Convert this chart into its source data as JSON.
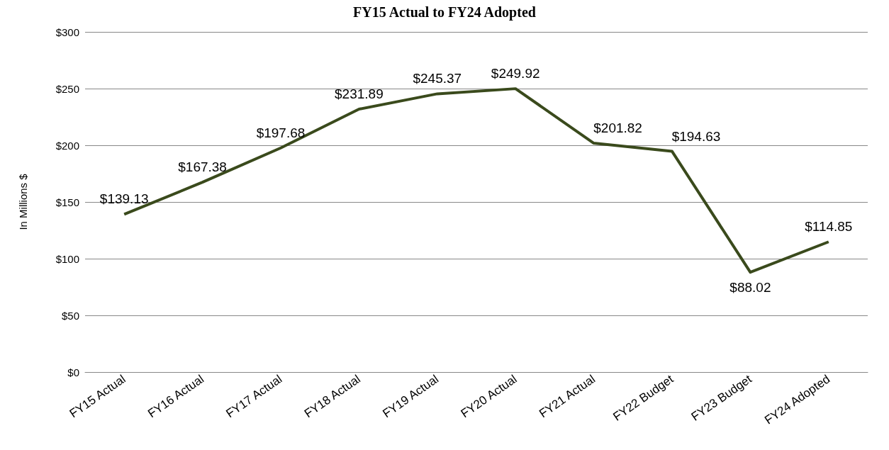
{
  "chart_data": {
    "type": "line",
    "title": "FY15 Actual to FY24 Adopted",
    "ylabel": "In Millions $",
    "categories": [
      "FY15 Actual",
      "FY16 Actual",
      "FY17 Actual",
      "FY18 Actual",
      "FY19 Actual",
      "FY20 Actual",
      "FY21 Actual",
      "FY22 Budget",
      "FY23 Budget",
      "FY24 Adopted"
    ],
    "series": [
      {
        "color": "#3a4a1c",
        "values": [
          139.13,
          167.38,
          197.68,
          231.89,
          245.37,
          249.92,
          201.82,
          194.63,
          88.02,
          114.85
        ],
        "value_labels": [
          "$139.13",
          "$167.38",
          "$197.68",
          "$231.89",
          "$245.37",
          "$249.92",
          "$201.82",
          "$194.63",
          "$88.02",
          "$114.85"
        ]
      }
    ],
    "ylim": [
      0,
      300
    ],
    "yticks": [
      {
        "value": 0,
        "label": "$0"
      },
      {
        "value": 50,
        "label": "$50"
      },
      {
        "value": 100,
        "label": "$100"
      },
      {
        "value": 150,
        "label": "$150"
      },
      {
        "value": 200,
        "label": "$200"
      },
      {
        "value": 250,
        "label": "$250"
      },
      {
        "value": 300,
        "label": "$300"
      }
    ],
    "grid": "y",
    "marker": "none",
    "line_style": "solid"
  }
}
